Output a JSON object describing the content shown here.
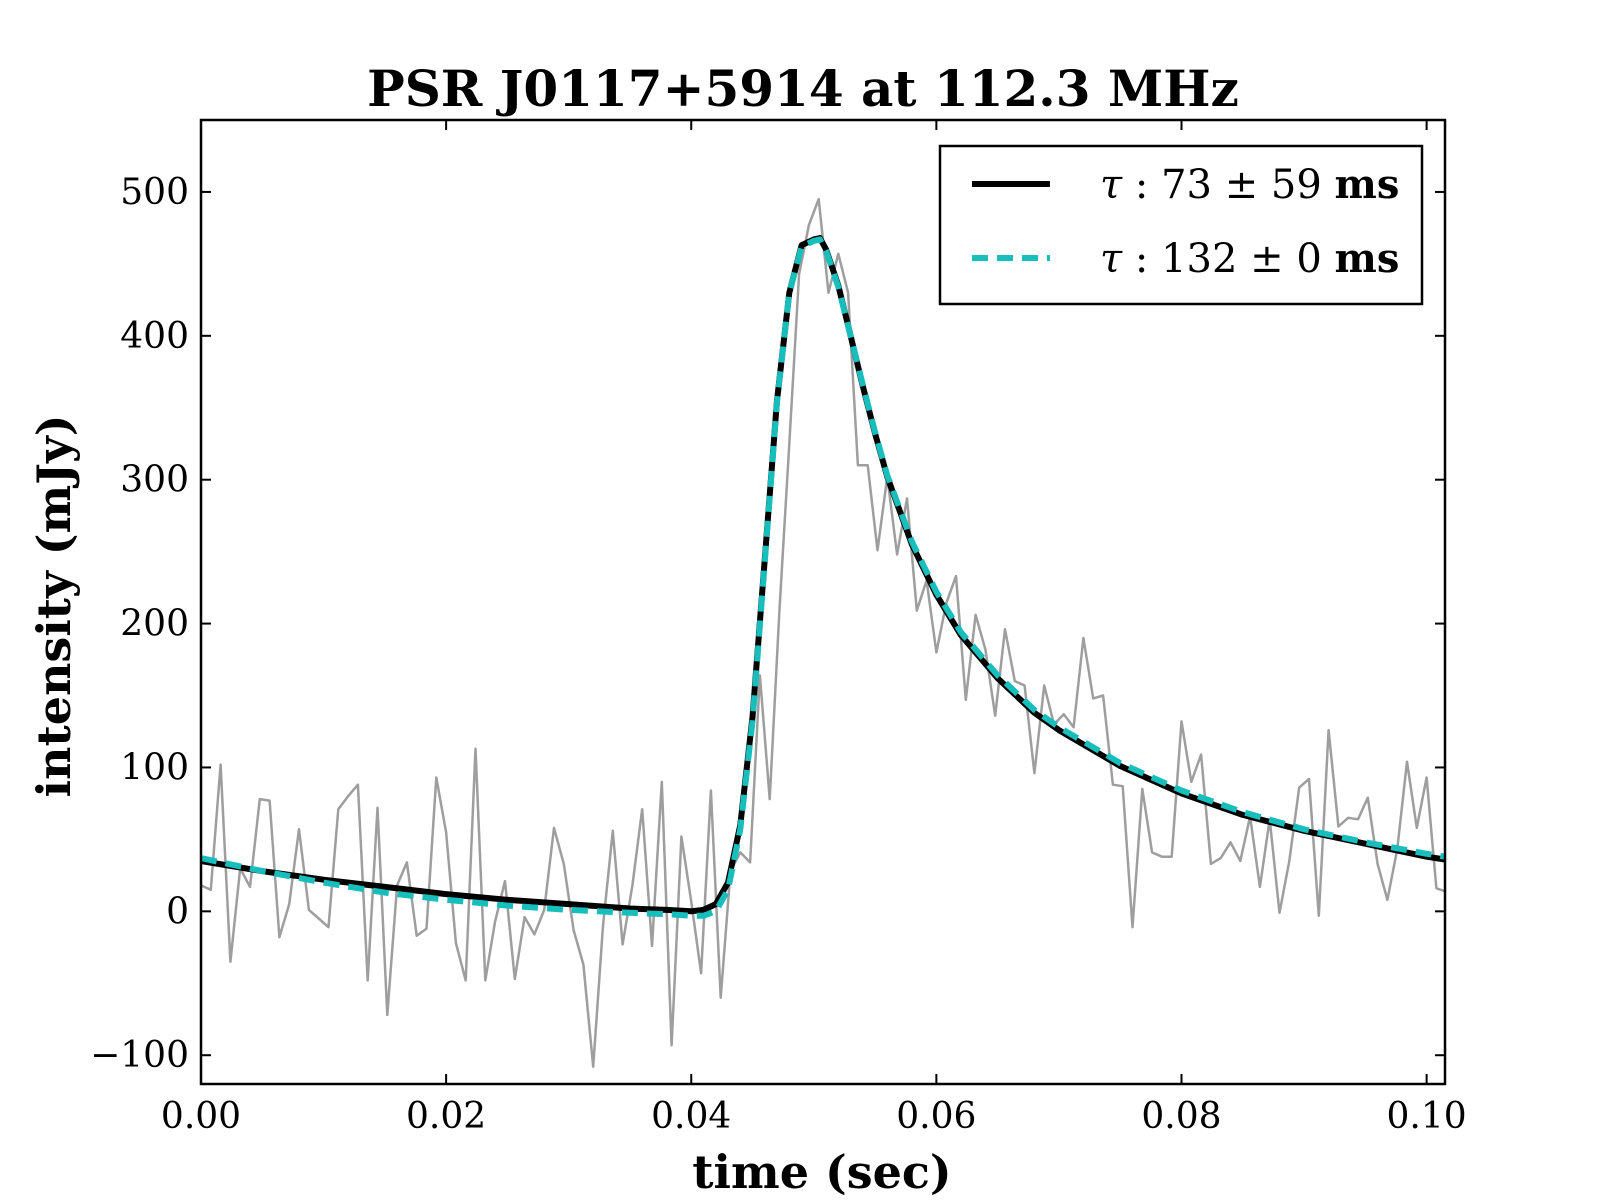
{
  "chart_data": {
    "type": "line",
    "title": "PSR J0117+5914 at 112.3 MHz",
    "xlabel": "time (sec)",
    "ylabel": "intensity (mJy)",
    "xlim": [
      0.0,
      0.1015
    ],
    "ylim": [
      -120,
      550
    ],
    "xticks": [
      0.0,
      0.02,
      0.04,
      0.06,
      0.08,
      0.1
    ],
    "xtick_labels": [
      "0.00",
      "0.02",
      "0.04",
      "0.06",
      "0.08",
      "0.10"
    ],
    "yticks": [
      -100,
      0,
      100,
      200,
      300,
      400,
      500
    ],
    "ytick_labels": [
      "−100",
      "0",
      "100",
      "200",
      "300",
      "400",
      "500"
    ],
    "grid": false,
    "legend": {
      "position": "top-right",
      "entries": [
        {
          "symbol": "τ",
          "colon": ":",
          "value": "73",
          "pm": "±",
          "err": "59",
          "unit": "ms"
        },
        {
          "symbol": "τ",
          "colon": ":",
          "value": "132",
          "pm": "±",
          "err": "0",
          "unit": "ms"
        }
      ]
    },
    "series": [
      {
        "name": "data",
        "style": "solid",
        "color": "#9e9e9e",
        "x": [
          0.0,
          0.0008,
          0.0016,
          0.0024,
          0.0032,
          0.004,
          0.0048,
          0.0056,
          0.0064,
          0.0072,
          0.008,
          0.0088,
          0.0096,
          0.0104,
          0.0112,
          0.012,
          0.0128,
          0.0136,
          0.0144,
          0.0152,
          0.016,
          0.0168,
          0.0176,
          0.0184,
          0.0192,
          0.02,
          0.0208,
          0.0216,
          0.0224,
          0.0232,
          0.024,
          0.0248,
          0.0256,
          0.0264,
          0.0272,
          0.028,
          0.0288,
          0.0296,
          0.0304,
          0.0312,
          0.032,
          0.0328,
          0.0336,
          0.0344,
          0.0352,
          0.036,
          0.0368,
          0.0376,
          0.0384,
          0.0392,
          0.04,
          0.0408,
          0.0416,
          0.0424,
          0.0432,
          0.044,
          0.0448,
          0.0456,
          0.0464,
          0.0472,
          0.048,
          0.0488,
          0.0496,
          0.0504,
          0.0512,
          0.052,
          0.0528,
          0.0536,
          0.0544,
          0.0552,
          0.056,
          0.0568,
          0.0576,
          0.0584,
          0.0592,
          0.06,
          0.0608,
          0.0616,
          0.0624,
          0.0632,
          0.064,
          0.0648,
          0.0656,
          0.0664,
          0.0672,
          0.068,
          0.0688,
          0.0696,
          0.0704,
          0.0712,
          0.072,
          0.0728,
          0.0736,
          0.0744,
          0.0752,
          0.076,
          0.0768,
          0.0776,
          0.0784,
          0.0792,
          0.08,
          0.0808,
          0.0816,
          0.0824,
          0.0832,
          0.084,
          0.0848,
          0.0856,
          0.0864,
          0.0872,
          0.088,
          0.0888,
          0.0896,
          0.0904,
          0.0912,
          0.092,
          0.0928,
          0.0936,
          0.0944,
          0.0952,
          0.096,
          0.0968,
          0.0976,
          0.0984,
          0.0992,
          0.1,
          0.1008,
          0.1015
        ],
        "values": [
          18,
          15,
          102,
          -35,
          30,
          17,
          78,
          77,
          -18,
          5,
          57,
          1,
          -5,
          -11,
          71,
          80,
          88,
          -48,
          72,
          -72,
          18,
          34,
          -17,
          -12,
          93,
          55,
          -22,
          -48,
          113,
          -48,
          -7,
          21,
          -47,
          -4,
          -16,
          1,
          58,
          33,
          -13,
          -37,
          -108,
          -10,
          56,
          -23,
          18,
          71,
          -24,
          90,
          -93,
          52,
          7,
          -43,
          84,
          -60,
          28,
          41,
          34,
          164,
          78,
          210,
          325,
          443,
          477,
          495,
          430,
          457,
          430,
          310,
          310,
          251,
          302,
          248,
          287,
          209,
          230,
          180,
          214,
          233,
          147,
          206,
          182,
          136,
          196,
          160,
          157,
          96,
          157,
          130,
          137,
          128,
          190,
          148,
          150,
          88,
          87,
          -11,
          85,
          41,
          38,
          38,
          132,
          90,
          109,
          33,
          37,
          48,
          35,
          66,
          17,
          64,
          -1,
          35,
          86,
          92,
          -3,
          126,
          59,
          65,
          64,
          79,
          33,
          8,
          43,
          104,
          58,
          93,
          16,
          14
        ]
      },
      {
        "name": "fit τ=73 ms",
        "style": "solid",
        "color": "#000000",
        "x": [
          0.0,
          0.005,
          0.01,
          0.015,
          0.02,
          0.025,
          0.03,
          0.035,
          0.038,
          0.04,
          0.041,
          0.042,
          0.043,
          0.044,
          0.045,
          0.046,
          0.047,
          0.048,
          0.049,
          0.05,
          0.0505,
          0.051,
          0.052,
          0.053,
          0.054,
          0.055,
          0.056,
          0.058,
          0.06,
          0.062,
          0.065,
          0.068,
          0.07,
          0.075,
          0.08,
          0.085,
          0.09,
          0.095,
          0.1,
          0.1015
        ],
        "values": [
          35,
          28,
          22,
          17,
          12,
          8,
          5,
          2,
          1,
          0,
          1,
          5,
          20,
          60,
          135,
          245,
          355,
          430,
          463,
          467,
          468,
          460,
          435,
          400,
          365,
          332,
          302,
          255,
          220,
          192,
          162,
          138,
          126,
          101,
          82,
          67,
          56,
          47,
          38,
          36
        ]
      },
      {
        "name": "fit τ=132 ms",
        "style": "dashed",
        "color": "#17bebb",
        "x": [
          0.0,
          0.005,
          0.01,
          0.015,
          0.02,
          0.025,
          0.03,
          0.035,
          0.038,
          0.04,
          0.041,
          0.042,
          0.043,
          0.044,
          0.045,
          0.046,
          0.047,
          0.048,
          0.049,
          0.05,
          0.0505,
          0.051,
          0.052,
          0.053,
          0.054,
          0.055,
          0.056,
          0.058,
          0.06,
          0.062,
          0.065,
          0.068,
          0.07,
          0.075,
          0.08,
          0.085,
          0.09,
          0.095,
          0.1,
          0.1015
        ],
        "values": [
          37,
          28,
          20,
          13,
          8,
          4,
          1,
          -1,
          -2,
          -3,
          -3,
          0,
          15,
          57,
          132,
          243,
          354,
          430,
          462,
          466,
          467,
          459,
          434,
          400,
          366,
          333,
          303,
          257,
          222,
          194,
          164,
          140,
          128,
          103,
          84,
          69,
          57,
          48,
          40,
          38
        ]
      }
    ]
  }
}
